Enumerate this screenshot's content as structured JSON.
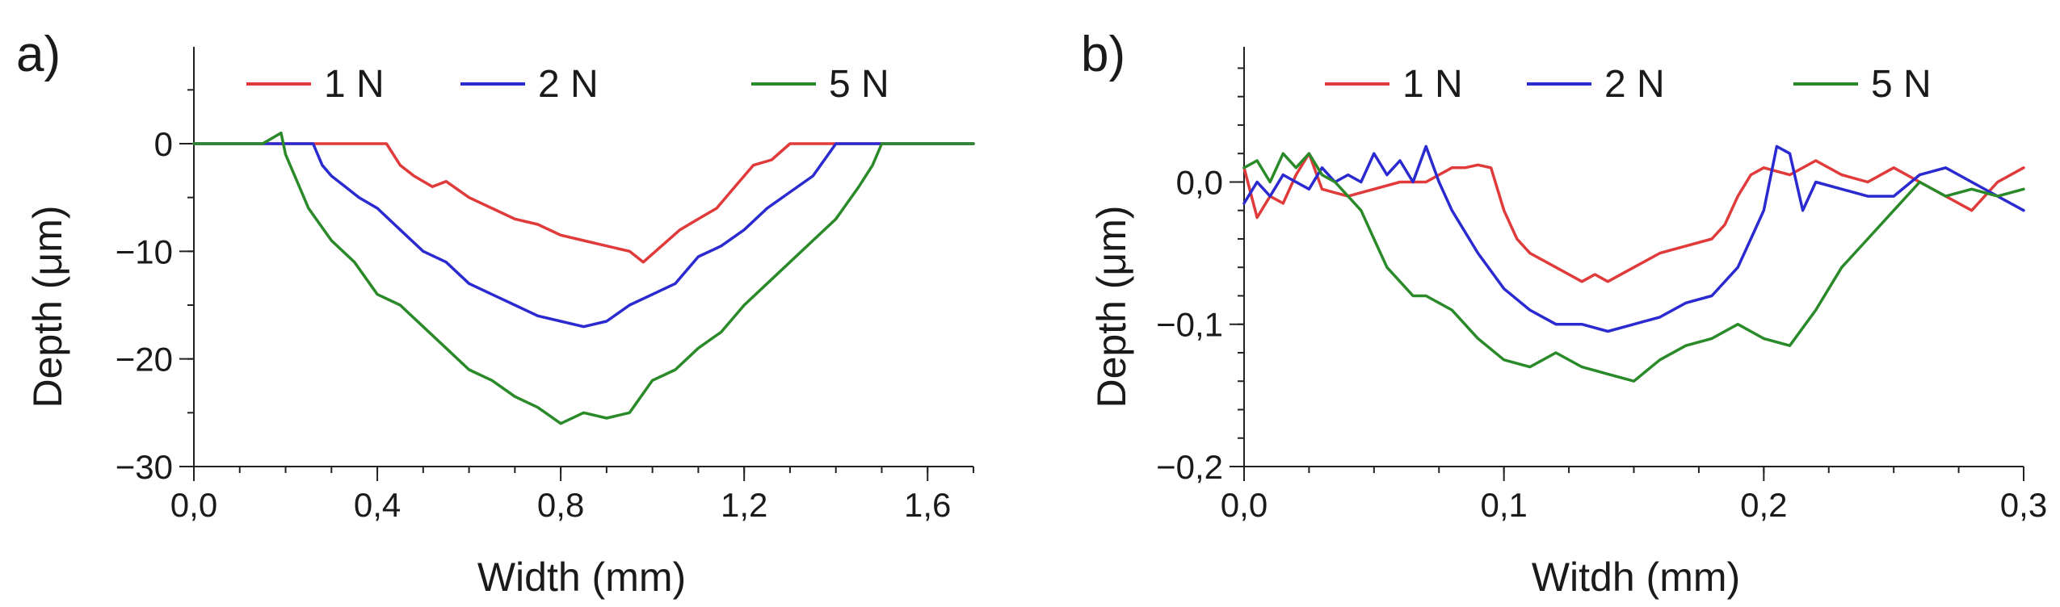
{
  "chart_data": [
    {
      "type": "line",
      "panel_label": "a)",
      "xlabel": "Width  (mm)",
      "ylabel": "Depth  (μm)",
      "xlim": [
        0,
        1.7
      ],
      "ylim": [
        -30,
        9
      ],
      "x_ticks": [
        0,
        0.4,
        0.8,
        1.2,
        1.6
      ],
      "x_tick_labels": [
        "0,0",
        "0,4",
        "0,8",
        "1,2",
        "1,6"
      ],
      "y_ticks": [
        0,
        -10,
        -20,
        -30
      ],
      "y_tick_labels": [
        "0",
        "−10",
        "−20",
        "−30"
      ],
      "legend_position": "top",
      "series": [
        {
          "name": "1 N",
          "color": "#e03a3a",
          "x": [
            0,
            0.1,
            0.2,
            0.3,
            0.42,
            0.45,
            0.48,
            0.52,
            0.55,
            0.6,
            0.65,
            0.7,
            0.75,
            0.8,
            0.85,
            0.9,
            0.95,
            0.98,
            1.02,
            1.06,
            1.1,
            1.14,
            1.18,
            1.22,
            1.26,
            1.3,
            1.4,
            1.55,
            1.7
          ],
          "values": [
            0,
            0,
            0,
            0,
            0,
            -2,
            -3,
            -4,
            -3.5,
            -5,
            -6,
            -7,
            -7.5,
            -8.5,
            -9,
            -9.5,
            -10,
            -11,
            -9.5,
            -8,
            -7,
            -6,
            -4,
            -2,
            -1.5,
            0,
            0,
            0,
            0
          ]
        },
        {
          "name": "2 N",
          "color": "#2a2ad0",
          "x": [
            0,
            0.1,
            0.2,
            0.26,
            0.28,
            0.3,
            0.33,
            0.36,
            0.4,
            0.45,
            0.5,
            0.55,
            0.6,
            0.65,
            0.7,
            0.75,
            0.8,
            0.85,
            0.9,
            0.95,
            1.0,
            1.05,
            1.1,
            1.15,
            1.2,
            1.25,
            1.3,
            1.35,
            1.4,
            1.5,
            1.6,
            1.7
          ],
          "values": [
            0,
            0,
            0,
            0,
            -2,
            -3,
            -4,
            -5,
            -6,
            -8,
            -10,
            -11,
            -13,
            -14,
            -15,
            -16,
            -16.5,
            -17,
            -16.5,
            -15,
            -14,
            -13,
            -10.5,
            -9.5,
            -8,
            -6,
            -4.5,
            -3,
            0,
            0,
            0,
            0
          ]
        },
        {
          "name": "5 N",
          "color": "#2a8a2a",
          "x": [
            0,
            0.1,
            0.15,
            0.19,
            0.2,
            0.22,
            0.25,
            0.3,
            0.35,
            0.4,
            0.45,
            0.5,
            0.55,
            0.6,
            0.65,
            0.7,
            0.75,
            0.8,
            0.85,
            0.9,
            0.95,
            1.0,
            1.05,
            1.1,
            1.15,
            1.2,
            1.25,
            1.3,
            1.35,
            1.4,
            1.45,
            1.48,
            1.5,
            1.6,
            1.7
          ],
          "values": [
            0,
            0,
            0,
            1,
            -1,
            -3,
            -6,
            -9,
            -11,
            -14,
            -15,
            -17,
            -19,
            -21,
            -22,
            -23.5,
            -24.5,
            -26,
            -25,
            -25.5,
            -25,
            -22,
            -21,
            -19,
            -17.5,
            -15,
            -13,
            -11,
            -9,
            -7,
            -4,
            -2,
            0,
            0,
            0
          ]
        }
      ]
    },
    {
      "type": "line",
      "panel_label": "b)",
      "xlabel": "Witdh  (mm)",
      "ylabel": "Depth  (μm)",
      "xlim": [
        0,
        0.3
      ],
      "ylim": [
        -0.2,
        0.095
      ],
      "x_ticks": [
        0,
        0.1,
        0.2,
        0.3
      ],
      "x_tick_labels": [
        "0,0",
        "0,1",
        "0,2",
        "0,3"
      ],
      "y_ticks": [
        0,
        -0.1,
        -0.2
      ],
      "y_tick_labels": [
        "0,0",
        "−0,1",
        "−0,2"
      ],
      "legend_position": "top",
      "series": [
        {
          "name": "1 N",
          "color": "#e03a3a",
          "x": [
            0,
            0.005,
            0.01,
            0.015,
            0.02,
            0.025,
            0.03,
            0.04,
            0.05,
            0.06,
            0.07,
            0.075,
            0.08,
            0.085,
            0.09,
            0.095,
            0.1,
            0.105,
            0.11,
            0.115,
            0.12,
            0.125,
            0.13,
            0.135,
            0.14,
            0.15,
            0.16,
            0.17,
            0.18,
            0.185,
            0.19,
            0.195,
            0.2,
            0.21,
            0.22,
            0.23,
            0.24,
            0.25,
            0.26,
            0.27,
            0.28,
            0.29,
            0.3
          ],
          "values": [
            0.01,
            -0.025,
            -0.01,
            -0.015,
            0.005,
            0.02,
            -0.005,
            -0.01,
            -0.005,
            0,
            0,
            0.005,
            0.01,
            0.01,
            0.012,
            0.01,
            -0.02,
            -0.04,
            -0.05,
            -0.055,
            -0.06,
            -0.065,
            -0.07,
            -0.065,
            -0.07,
            -0.06,
            -0.05,
            -0.045,
            -0.04,
            -0.03,
            -0.01,
            0.005,
            0.01,
            0.005,
            0.015,
            0.005,
            0,
            0.01,
            0,
            -0.01,
            -0.02,
            0,
            0.01
          ]
        },
        {
          "name": "2 N",
          "color": "#2a2ad0",
          "x": [
            0,
            0.005,
            0.01,
            0.015,
            0.02,
            0.025,
            0.03,
            0.035,
            0.04,
            0.045,
            0.05,
            0.055,
            0.06,
            0.065,
            0.07,
            0.075,
            0.08,
            0.09,
            0.1,
            0.11,
            0.12,
            0.13,
            0.14,
            0.15,
            0.16,
            0.17,
            0.18,
            0.19,
            0.195,
            0.2,
            0.205,
            0.21,
            0.215,
            0.22,
            0.23,
            0.24,
            0.25,
            0.26,
            0.27,
            0.28,
            0.29,
            0.3
          ],
          "values": [
            -0.015,
            0,
            -0.01,
            0.005,
            0,
            -0.005,
            0.01,
            0,
            0.005,
            0,
            0.02,
            0.005,
            0.015,
            0,
            0.025,
            0,
            -0.02,
            -0.05,
            -0.075,
            -0.09,
            -0.1,
            -0.1,
            -0.105,
            -0.1,
            -0.095,
            -0.085,
            -0.08,
            -0.06,
            -0.04,
            -0.02,
            0.025,
            0.02,
            -0.02,
            0,
            -0.005,
            -0.01,
            -0.01,
            0.005,
            0.01,
            0,
            -0.01,
            -0.02
          ]
        },
        {
          "name": "5 N",
          "color": "#2a8a2a",
          "x": [
            0,
            0.005,
            0.01,
            0.015,
            0.02,
            0.025,
            0.03,
            0.035,
            0.04,
            0.045,
            0.05,
            0.055,
            0.06,
            0.065,
            0.07,
            0.08,
            0.09,
            0.1,
            0.11,
            0.12,
            0.13,
            0.14,
            0.15,
            0.16,
            0.17,
            0.18,
            0.19,
            0.2,
            0.21,
            0.22,
            0.23,
            0.24,
            0.25,
            0.26,
            0.27,
            0.28,
            0.29,
            0.3
          ],
          "values": [
            0.01,
            0.015,
            0,
            0.02,
            0.01,
            0.02,
            0.005,
            0,
            -0.01,
            -0.02,
            -0.04,
            -0.06,
            -0.07,
            -0.08,
            -0.08,
            -0.09,
            -0.11,
            -0.125,
            -0.13,
            -0.12,
            -0.13,
            -0.135,
            -0.14,
            -0.125,
            -0.115,
            -0.11,
            -0.1,
            -0.11,
            -0.115,
            -0.09,
            -0.06,
            -0.04,
            -0.02,
            0,
            -0.01,
            -0.005,
            -0.01,
            -0.005
          ]
        }
      ]
    }
  ]
}
